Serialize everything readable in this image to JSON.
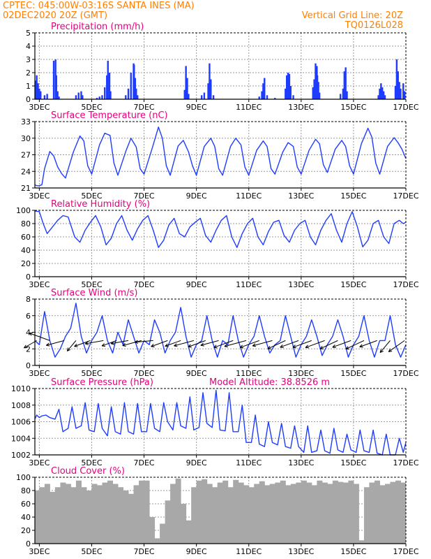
{
  "header": {
    "line1": "CPTEC:   045:00W-03:16S   SANTA INES (MA)",
    "line2_left": "02DEC2020 20Z (GMT)",
    "line2_right": "Vertical Grid Line: 20Z",
    "line3_right": "TQ0126L028"
  },
  "colors": {
    "header_text": "#ff7f00",
    "panel_title": "#e6007e",
    "series_line": "#1e3cff",
    "bars": "#1e3cff",
    "cloud_bars": "#a8a8a8",
    "grid": "#9a9a9a",
    "wind_arrow": "#000000"
  },
  "chart_data": [
    {
      "id": "precipitation",
      "type": "bar",
      "title": "Precipitation (mm/h)",
      "x_range_days": [
        2.83,
        17.0
      ],
      "ylim": [
        0,
        5
      ],
      "yticks": [
        "0",
        "1",
        "2",
        "3",
        "4",
        "5"
      ],
      "xticks": [
        "3DEC",
        "5DEC",
        "7DEC",
        "9DEC",
        "11DEC",
        "13DEC",
        "15DEC",
        "17DEC"
      ],
      "x_day": [
        2.7,
        2.75,
        2.8,
        2.85,
        2.9,
        2.95,
        3.0,
        3.05,
        3.2,
        3.3,
        3.55,
        3.62,
        3.65,
        3.7,
        3.75,
        4.4,
        4.5,
        4.6,
        4.65,
        5.2,
        5.3,
        5.4,
        5.5,
        5.58,
        5.62,
        5.68,
        5.72,
        6.3,
        6.4,
        6.5,
        6.6,
        6.62,
        6.66,
        6.7,
        6.75,
        8.55,
        8.6,
        8.65,
        8.7,
        9.2,
        9.3,
        9.45,
        9.5,
        9.55,
        9.65,
        11.4,
        11.5,
        11.55,
        11.6,
        11.7,
        12.0,
        12.4,
        12.45,
        12.5,
        12.55,
        12.6,
        12.7,
        13.45,
        13.5,
        13.55,
        13.6,
        13.62,
        13.66,
        13.7,
        14.5,
        14.6,
        14.65,
        14.7,
        14.75,
        15.95,
        16.0,
        16.05,
        16.1,
        16.15,
        16.2,
        16.6,
        16.65,
        16.7,
        16.75,
        16.8,
        16.9,
        16.95
      ],
      "values": [
        1.2,
        1.1,
        1.0,
        1.4,
        1.8,
        1.2,
        0.8,
        0.6,
        0.3,
        0.4,
        2.9,
        3.0,
        1.8,
        0.6,
        0.2,
        0.3,
        0.5,
        0.6,
        0.3,
        0.1,
        0.2,
        0.3,
        0.9,
        1.8,
        2.9,
        2.0,
        0.6,
        0.3,
        0.8,
        2.0,
        2.7,
        2.6,
        1.6,
        0.8,
        0.3,
        0.7,
        2.5,
        1.6,
        0.4,
        0.3,
        0.5,
        1.2,
        2.7,
        1.5,
        0.3,
        0.2,
        0.6,
        1.2,
        1.6,
        0.3,
        0.1,
        0.8,
        1.8,
        2.0,
        1.9,
        1.0,
        0.3,
        0.9,
        1.5,
        2.7,
        2.5,
        1.8,
        1.3,
        0.5,
        0.4,
        0.8,
        2.1,
        2.4,
        0.6,
        0.3,
        0.8,
        1.2,
        0.9,
        0.6,
        0.3,
        1.0,
        3.0,
        2.1,
        1.3,
        0.8,
        1.2,
        0.6
      ]
    },
    {
      "id": "temperature",
      "type": "line",
      "title": "Surface Temperature (nC)",
      "x_range_days": [
        2.83,
        17.0
      ],
      "ylim": [
        21,
        33
      ],
      "yticks": [
        "21",
        "24",
        "27",
        "30",
        "33"
      ],
      "xticks": [
        "3DEC",
        "5DEC",
        "7DEC",
        "9DEC",
        "11DEC",
        "13DEC",
        "15DEC",
        "17DEC"
      ],
      "x_day": [
        2.83,
        2.9,
        3.0,
        3.1,
        3.2,
        3.4,
        3.55,
        3.7,
        3.85,
        4.0,
        4.3,
        4.55,
        4.7,
        4.85,
        5.0,
        5.3,
        5.5,
        5.7,
        5.85,
        6.0,
        6.3,
        6.5,
        6.7,
        6.85,
        7.0,
        7.3,
        7.55,
        7.7,
        7.85,
        8.0,
        8.3,
        8.5,
        8.7,
        8.85,
        9.0,
        9.3,
        9.55,
        9.7,
        9.85,
        10.0,
        10.3,
        10.5,
        10.7,
        10.85,
        11.0,
        11.3,
        11.55,
        11.7,
        11.85,
        12.0,
        12.3,
        12.5,
        12.7,
        12.85,
        13.0,
        13.3,
        13.55,
        13.7,
        13.85,
        14.0,
        14.3,
        14.55,
        14.7,
        14.85,
        15.0,
        15.3,
        15.55,
        15.7,
        15.85,
        16.0,
        16.3,
        16.55,
        16.7,
        16.85,
        17.0
      ],
      "values": [
        21.6,
        21.4,
        21.4,
        21.6,
        24.5,
        27.6,
        26.8,
        24.8,
        23.6,
        22.8,
        27.5,
        30.4,
        29.5,
        25.0,
        23.5,
        28.8,
        30.9,
        30.5,
        25.5,
        23.3,
        27.6,
        30.0,
        28.4,
        24.5,
        23.5,
        28.0,
        32.0,
        30.0,
        25.0,
        23.3,
        28.6,
        29.6,
        27.5,
        25.0,
        23.3,
        28.5,
        30.0,
        28.5,
        24.5,
        23.3,
        28.5,
        30.0,
        28.8,
        24.8,
        23.3,
        27.8,
        29.5,
        28.5,
        24.5,
        23.5,
        27.5,
        29.2,
        28.5,
        24.8,
        23.5,
        27.8,
        29.8,
        29.0,
        25.2,
        23.8,
        28.0,
        29.6,
        28.5,
        25.0,
        23.5,
        29.0,
        31.8,
        30.2,
        25.5,
        23.5,
        28.5,
        30.1,
        29.2,
        28.0,
        26.3
      ]
    },
    {
      "id": "humidity",
      "type": "line",
      "title": "Relative Humidity (%)",
      "x_range_days": [
        2.83,
        17.0
      ],
      "ylim": [
        0,
        100
      ],
      "yticks": [
        "0",
        "20",
        "40",
        "60",
        "80",
        "100"
      ],
      "xticks": [
        "3DEC",
        "5DEC",
        "7DEC",
        "9DEC",
        "11DEC",
        "13DEC",
        "15DEC",
        "17DEC"
      ],
      "x_day": [
        2.83,
        3.0,
        3.15,
        3.3,
        3.5,
        3.7,
        3.9,
        4.1,
        4.35,
        4.55,
        4.75,
        4.95,
        5.15,
        5.35,
        5.55,
        5.75,
        5.95,
        6.15,
        6.35,
        6.55,
        6.75,
        6.95,
        7.15,
        7.35,
        7.55,
        7.75,
        7.95,
        8.15,
        8.35,
        8.55,
        8.75,
        8.95,
        9.15,
        9.35,
        9.55,
        9.75,
        9.95,
        10.15,
        10.35,
        10.55,
        10.75,
        10.95,
        11.15,
        11.35,
        11.55,
        11.75,
        11.95,
        12.15,
        12.35,
        12.55,
        12.75,
        12.95,
        13.15,
        13.35,
        13.55,
        13.75,
        13.95,
        14.15,
        14.35,
        14.55,
        14.75,
        14.95,
        15.15,
        15.35,
        15.55,
        15.75,
        15.95,
        16.15,
        16.35,
        16.55,
        16.75,
        16.9,
        17.0
      ],
      "values": [
        99,
        98,
        80,
        65,
        75,
        85,
        92,
        90,
        60,
        52,
        70,
        82,
        92,
        75,
        48,
        58,
        80,
        92,
        70,
        55,
        72,
        85,
        92,
        70,
        44,
        55,
        78,
        88,
        65,
        60,
        75,
        82,
        88,
        62,
        52,
        70,
        85,
        92,
        60,
        44,
        65,
        80,
        88,
        60,
        48,
        68,
        82,
        85,
        62,
        52,
        70,
        80,
        85,
        60,
        48,
        70,
        85,
        95,
        70,
        52,
        80,
        98,
        75,
        45,
        55,
        80,
        85,
        60,
        50,
        80,
        85,
        80,
        82
      ]
    },
    {
      "id": "wind",
      "type": "line",
      "title": "Surface Wind (m/s)",
      "x_range_days": [
        2.83,
        17.0
      ],
      "ylim": [
        0,
        8
      ],
      "yticks": [
        "0",
        "2",
        "4",
        "6",
        "8"
      ],
      "xticks": [
        "3DEC",
        "5DEC",
        "7DEC",
        "9DEC",
        "11DEC",
        "13DEC",
        "15DEC",
        "17DEC"
      ],
      "x_day": [
        2.83,
        3.0,
        3.2,
        3.4,
        3.6,
        3.8,
        4.0,
        4.2,
        4.4,
        4.6,
        4.8,
        5.0,
        5.2,
        5.4,
        5.6,
        5.8,
        6.0,
        6.2,
        6.4,
        6.6,
        6.8,
        7.0,
        7.2,
        7.4,
        7.6,
        7.8,
        8.0,
        8.2,
        8.4,
        8.6,
        8.8,
        9.0,
        9.2,
        9.4,
        9.6,
        9.8,
        10.0,
        10.2,
        10.4,
        10.6,
        10.8,
        11.0,
        11.2,
        11.4,
        11.6,
        11.8,
        12.0,
        12.2,
        12.4,
        12.6,
        12.8,
        13.0,
        13.2,
        13.4,
        13.6,
        13.8,
        14.0,
        14.2,
        14.4,
        14.6,
        14.8,
        15.0,
        15.2,
        15.4,
        15.6,
        15.8,
        16.0,
        16.2,
        16.4,
        16.6,
        16.8,
        17.0
      ],
      "values": [
        3.0,
        2.5,
        6.5,
        3.0,
        1.0,
        2.0,
        3.5,
        4.5,
        7.5,
        3.5,
        1.5,
        3.0,
        4.0,
        6.0,
        3.0,
        1.5,
        4.0,
        2.5,
        5.5,
        3.5,
        1.5,
        3.0,
        2.5,
        5.5,
        4.0,
        1.5,
        3.0,
        4.0,
        7.0,
        3.5,
        1.0,
        2.5,
        3.0,
        6.0,
        3.0,
        1.0,
        3.0,
        2.5,
        6.0,
        3.0,
        1.0,
        2.5,
        3.5,
        6.0,
        3.5,
        1.5,
        2.5,
        3.0,
        6.0,
        3.5,
        1.0,
        2.5,
        3.5,
        5.5,
        3.5,
        1.2,
        2.5,
        3.5,
        5.5,
        3.5,
        1.0,
        2.5,
        3.5,
        6.0,
        3.0,
        1.0,
        3.0,
        3.0,
        6.0,
        2.5,
        1.0,
        2.5
      ],
      "arrows_day": [
        2.9,
        3.4,
        3.95,
        4.4,
        4.95,
        5.45,
        5.95,
        6.4,
        6.9,
        7.35,
        7.9,
        8.4,
        8.9,
        9.35,
        9.85,
        10.4,
        10.9,
        11.4,
        11.9,
        12.4,
        12.9,
        13.4,
        13.9,
        14.4,
        14.9,
        15.4,
        15.9,
        16.4,
        16.95
      ],
      "arrows_speed": [
        3.0,
        4.5,
        3.8,
        2.8,
        3.5,
        3.8,
        3.2,
        3.6,
        4.0,
        3.8,
        3.6,
        3.4,
        4.2,
        3.8,
        3.8,
        4.2,
        4.6,
        4.2,
        4.2,
        4.0,
        4.0,
        4.1,
        4.2,
        4.0,
        4.0,
        4.1,
        3.8,
        3.2,
        4.0
      ],
      "arrows_dir_deg": [
        210,
        160,
        195,
        230,
        200,
        190,
        200,
        190,
        195,
        185,
        200,
        200,
        195,
        200,
        195,
        200,
        195,
        200,
        195,
        205,
        200,
        200,
        200,
        205,
        200,
        205,
        200,
        230,
        215
      ]
    },
    {
      "id": "pressure",
      "type": "line",
      "title": "Surface Pressure (hPa)",
      "annotation": "Model Altitude: 38.8526 m",
      "x_range_days": [
        2.83,
        17.0
      ],
      "ylim": [
        1002,
        1010
      ],
      "yticks": [
        "1002",
        "1004",
        "1006",
        "1008",
        "1010"
      ],
      "xticks": [
        "3DEC",
        "5DEC",
        "7DEC",
        "9DEC",
        "11DEC",
        "13DEC",
        "15DEC",
        "17DEC"
      ],
      "x_day": [
        2.83,
        2.9,
        3.0,
        3.1,
        3.25,
        3.4,
        3.6,
        3.75,
        3.9,
        4.1,
        4.25,
        4.4,
        4.6,
        4.75,
        4.9,
        5.1,
        5.25,
        5.4,
        5.6,
        5.75,
        5.9,
        6.1,
        6.25,
        6.4,
        6.6,
        6.75,
        6.9,
        7.1,
        7.25,
        7.4,
        7.6,
        7.75,
        7.9,
        8.1,
        8.25,
        8.4,
        8.6,
        8.75,
        8.9,
        9.1,
        9.25,
        9.4,
        9.6,
        9.75,
        9.9,
        10.1,
        10.25,
        10.4,
        10.6,
        10.75,
        10.9,
        11.1,
        11.25,
        11.4,
        11.6,
        11.75,
        11.9,
        12.1,
        12.25,
        12.4,
        12.6,
        12.75,
        12.9,
        13.1,
        13.25,
        13.4,
        13.6,
        13.75,
        13.9,
        14.1,
        14.25,
        14.4,
        14.6,
        14.75,
        14.9,
        15.1,
        15.25,
        15.4,
        15.6,
        15.75,
        15.9,
        16.1,
        16.25,
        16.4,
        16.6,
        16.75,
        16.9,
        17.0
      ],
      "values": [
        1006.3,
        1006.8,
        1006.5,
        1006.7,
        1006.8,
        1006.5,
        1006.3,
        1007.5,
        1004.8,
        1005.2,
        1007.8,
        1005.2,
        1005.5,
        1008.3,
        1005.0,
        1004.8,
        1008.2,
        1005.2,
        1004.3,
        1007.8,
        1004.8,
        1004.5,
        1008.3,
        1004.8,
        1004.5,
        1008.2,
        1004.8,
        1004.8,
        1008.2,
        1005.2,
        1004.8,
        1008.3,
        1006.0,
        1005.0,
        1008.3,
        1005.5,
        1005.2,
        1009.0,
        1005.0,
        1005.3,
        1009.5,
        1005.8,
        1005.3,
        1009.8,
        1005.0,
        1004.9,
        1009.5,
        1004.8,
        1004.8,
        1008.0,
        1003.5,
        1003.5,
        1006.8,
        1003.3,
        1003.0,
        1006.0,
        1003.5,
        1003.2,
        1005.8,
        1003.0,
        1002.8,
        1005.5,
        1003.0,
        1002.3,
        1005.5,
        1002.3,
        1002.5,
        1005.0,
        1002.5,
        1002.2,
        1005.2,
        1002.6,
        1002.3,
        1004.5,
        1002.6,
        1002.3,
        1005.0,
        1002.5,
        1002.3,
        1005.0,
        1002.2,
        1002.0,
        1004.5,
        1002.0,
        1002.0,
        1004.0,
        1002.3,
        1003.5
      ]
    },
    {
      "id": "cloud_cover",
      "type": "bar",
      "title": "Cloud Cover (%)",
      "x_range_days": [
        2.83,
        17.0
      ],
      "ylim": [
        0,
        100
      ],
      "yticks": [
        "0",
        "20",
        "40",
        "60",
        "80",
        "100"
      ],
      "xticks": [
        "3DEC",
        "5DEC",
        "7DEC",
        "9DEC",
        "11DEC",
        "13DEC",
        "15DEC",
        "17DEC"
      ],
      "x_day": [
        2.83,
        3.0,
        3.2,
        3.4,
        3.6,
        3.8,
        4.0,
        4.2,
        4.4,
        4.6,
        4.8,
        5.0,
        5.2,
        5.4,
        5.6,
        5.8,
        6.0,
        6.2,
        6.4,
        6.6,
        6.8,
        7.0,
        7.2,
        7.4,
        7.6,
        7.8,
        8.0,
        8.2,
        8.4,
        8.6,
        8.8,
        9.0,
        9.2,
        9.4,
        9.6,
        9.8,
        10.0,
        10.2,
        10.4,
        10.6,
        10.8,
        11.0,
        11.2,
        11.4,
        11.6,
        11.8,
        12.0,
        12.2,
        12.4,
        12.6,
        12.8,
        13.0,
        13.2,
        13.4,
        13.6,
        13.8,
        14.0,
        14.2,
        14.4,
        14.6,
        14.8,
        15.0,
        15.2,
        15.4,
        15.6,
        15.8,
        16.0,
        16.2,
        16.4,
        16.6,
        16.8,
        17.0
      ],
      "values": [
        80,
        85,
        90,
        78,
        85,
        92,
        90,
        85,
        95,
        85,
        80,
        90,
        88,
        92,
        95,
        90,
        85,
        80,
        75,
        88,
        95,
        95,
        40,
        8,
        30,
        65,
        90,
        98,
        60,
        35,
        85,
        95,
        97,
        90,
        85,
        92,
        95,
        85,
        96,
        92,
        88,
        85,
        90,
        94,
        88,
        90,
        92,
        95,
        88,
        90,
        92,
        95,
        92,
        88,
        95,
        92,
        90,
        95,
        93,
        92,
        95,
        90,
        5,
        85,
        92,
        95,
        88,
        90,
        93,
        95,
        92,
        95
      ]
    }
  ]
}
